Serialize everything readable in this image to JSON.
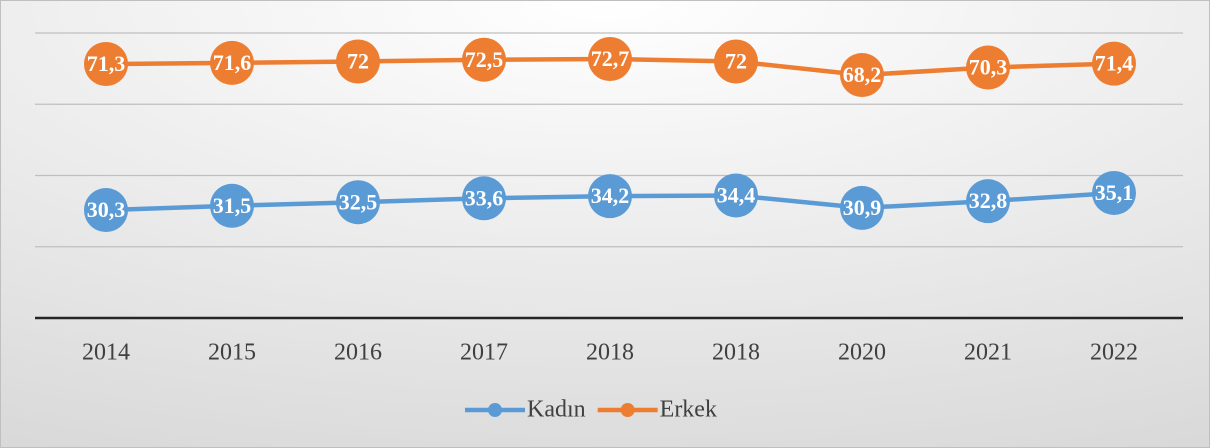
{
  "chart_data": {
    "type": "line",
    "categories": [
      "2014",
      "2015",
      "2016",
      "2017",
      "2018",
      "2018",
      "2020",
      "2021",
      "2022"
    ],
    "series": [
      {
        "name": "Kadın",
        "color": "#5b9bd5",
        "values": [
          30.3,
          31.5,
          32.5,
          33.6,
          34.2,
          34.4,
          30.9,
          32.8,
          35.1
        ],
        "value_labels": [
          "30,3",
          "31,5",
          "32,5",
          "33,6",
          "34,2",
          "34,4",
          "30,9",
          "32,8",
          "35,1"
        ]
      },
      {
        "name": "Erkek",
        "color": "#ed7d31",
        "values": [
          71.3,
          71.6,
          72,
          72.5,
          72.7,
          72,
          68.2,
          70.3,
          71.4
        ],
        "value_labels": [
          "71,3",
          "71,6",
          "72",
          "72,5",
          "72,7",
          "72",
          "68,2",
          "70,3",
          "71,4"
        ]
      }
    ],
    "ylim": [
      0,
      80
    ],
    "yticks": [
      0,
      20,
      40,
      60,
      80
    ],
    "grid": true,
    "legend": "bottom"
  }
}
